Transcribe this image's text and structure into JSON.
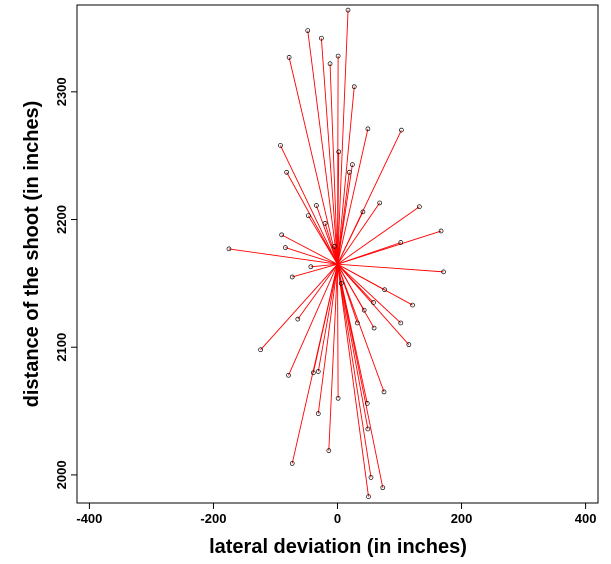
{
  "chart_data": {
    "type": "scatter",
    "title": "",
    "xlabel": "lateral deviation (in inches)",
    "ylabel": "distance of the shoot (in inches)",
    "xlim": [
      -420,
      420
    ],
    "ylim": [
      1978,
      2368
    ],
    "x_ticks": [
      -400,
      -200,
      0,
      200,
      400
    ],
    "y_ticks": [
      2000,
      2100,
      2200,
      2300
    ],
    "x_tick_labels": [
      "-400",
      "-200",
      "0",
      "200",
      "400"
    ],
    "y_tick_labels": [
      "2000",
      "2100",
      "2200",
      "2300"
    ],
    "grid": false,
    "legend": "none",
    "origin": {
      "x": 0,
      "y": 2165
    },
    "colors": {
      "segment": "#ff0000",
      "point": "#000000",
      "axis": "#000000"
    },
    "x": [
      17,
      -48,
      -26,
      -78,
      -12,
      1,
      27,
      -92,
      103,
      49,
      -82,
      2,
      24,
      19,
      68,
      41,
      -34,
      132,
      -47,
      -20,
      167,
      -90,
      102,
      -5,
      -84,
      -175,
      -43,
      171,
      -73,
      6,
      76,
      58,
      121,
      43,
      102,
      -64,
      32,
      59,
      115,
      -124,
      -39,
      -79,
      -31,
      75,
      1,
      48,
      -31,
      49,
      -14,
      -73,
      54,
      73,
      50
    ],
    "y": [
      2364,
      2348,
      2342,
      2327,
      2322,
      2328,
      2304,
      2258,
      2270,
      2271,
      2237,
      2253,
      2243,
      2237,
      2213,
      2206,
      2211,
      2210,
      2203,
      2197,
      2191,
      2188,
      2182,
      2179,
      2178,
      2177,
      2163,
      2159,
      2155,
      2150,
      2145,
      2135,
      2133,
      2129,
      2119,
      2122,
      2119,
      2115,
      2102,
      2098,
      2080,
      2078,
      2081,
      2065,
      2060,
      2056,
      2048,
      2036,
      2019,
      2009,
      1998,
      1990,
      1983
    ]
  }
}
